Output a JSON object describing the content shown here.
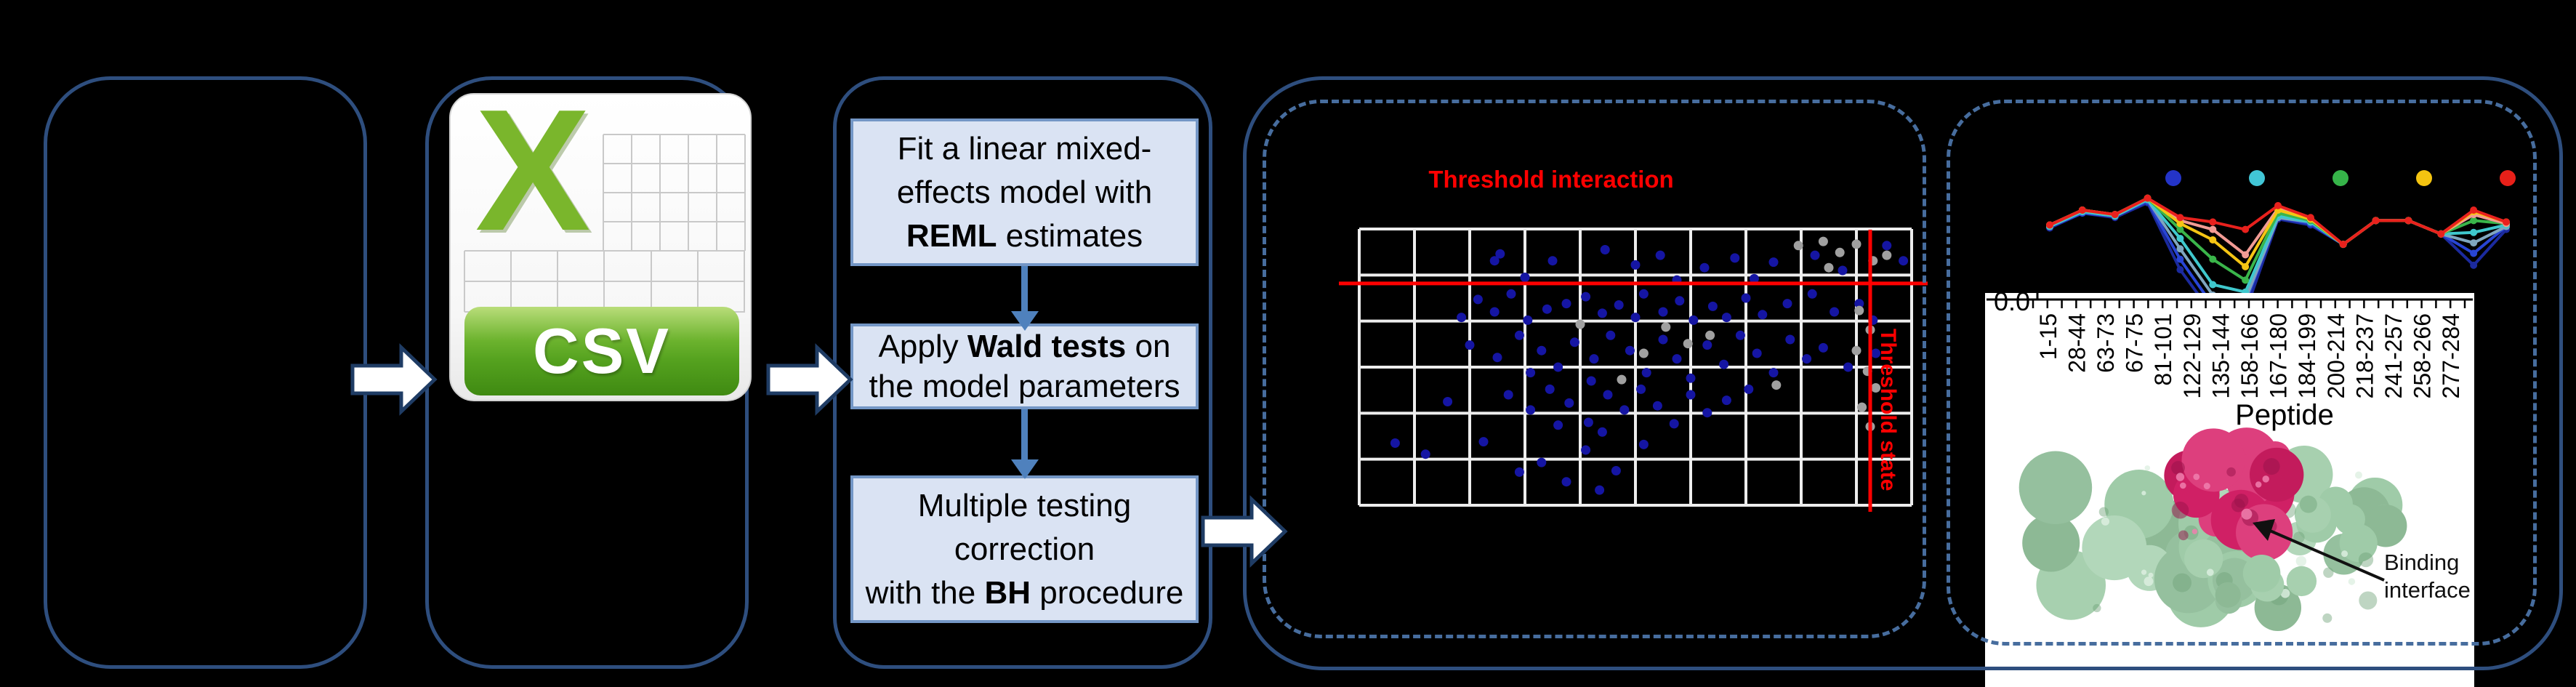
{
  "colors": {
    "background": "#000000",
    "panel_border": "#2e4e7e",
    "dashed_border": "#476d9e",
    "box_fill": "#dae3f3",
    "box_border": "#7396c5",
    "flow_arrow_fill": "#ffffff",
    "flow_arrow_outline": "#1f3c64",
    "down_arrow": "#4f81bd",
    "threshold_red": "#ff0000",
    "grid_line": "#ededed",
    "scatter_blue": "#1515a3",
    "scatter_gray": "#a0a0a0",
    "csv_green": "#7ab62c",
    "protein_green": "#9fcba8",
    "protein_green_dark": "#6fa178",
    "protein_green_light": "#dff0e2",
    "protein_pink": "#d02065",
    "protein_pink_dark": "#97124a",
    "protein_pink_light": "#f07fae"
  },
  "panel2": {
    "file_icon_letter": "X",
    "file_type_label": "CSV"
  },
  "panel3": {
    "boxes": [
      {
        "segments": [
          {
            "t": "Fit a linear mixed-"
          },
          {
            "br": true
          },
          {
            "t": "effects model with"
          },
          {
            "br": true
          },
          {
            "t": "REML",
            "b": true
          },
          {
            "t": " estimates"
          }
        ]
      },
      {
        "segments": [
          {
            "t": "Apply "
          },
          {
            "t": "Wald tests",
            "b": true
          },
          {
            "t": " on"
          },
          {
            "br": true
          },
          {
            "t": "the model parameters"
          }
        ]
      },
      {
        "segments": [
          {
            "t": "Multiple testing"
          },
          {
            "br": true
          },
          {
            "t": "correction"
          },
          {
            "br": true
          },
          {
            "t": "with the "
          },
          {
            "t": "BH",
            "b": true
          },
          {
            "t": " procedure"
          }
        ]
      }
    ]
  },
  "panel4": {
    "title": "Threshold interaction",
    "vline_label": "Threshold state",
    "chart_data": {
      "type": "scatter",
      "xlabel": "",
      "ylabel": "",
      "x_range": [
        0,
        1
      ],
      "y_range": [
        0,
        1
      ],
      "grid": {
        "cols": 10,
        "rows": 6,
        "visible": true
      },
      "threshold_interaction_y": 0.197,
      "threshold_state_x": 0.925,
      "series": [
        {
          "name": "blue-points",
          "color": "#1515a3",
          "points": [
            [
              0.255,
              0.09
            ],
            [
              0.35,
              0.115
            ],
            [
              0.445,
              0.075
            ],
            [
              0.5,
              0.13
            ],
            [
              0.545,
              0.095
            ],
            [
              0.625,
              0.14
            ],
            [
              0.68,
              0.105
            ],
            [
              0.75,
              0.12
            ],
            [
              0.825,
              0.095
            ],
            [
              0.875,
              0.15
            ],
            [
              0.955,
              0.06
            ],
            [
              0.985,
              0.115
            ],
            [
              0.3,
              0.175
            ],
            [
              0.575,
              0.185
            ],
            [
              0.715,
              0.18
            ],
            [
              0.245,
              0.115
            ],
            [
              0.215,
              0.255
            ],
            [
              0.245,
              0.3
            ],
            [
              0.275,
              0.235
            ],
            [
              0.305,
              0.33
            ],
            [
              0.375,
              0.27
            ],
            [
              0.41,
              0.245
            ],
            [
              0.44,
              0.305
            ],
            [
              0.47,
              0.275
            ],
            [
              0.515,
              0.235
            ],
            [
              0.55,
              0.3
            ],
            [
              0.58,
              0.26
            ],
            [
              0.605,
              0.33
            ],
            [
              0.64,
              0.28
            ],
            [
              0.7,
              0.25
            ],
            [
              0.73,
              0.31
            ],
            [
              0.775,
              0.27
            ],
            [
              0.82,
              0.235
            ],
            [
              0.86,
              0.3
            ],
            [
              0.905,
              0.27
            ],
            [
              0.93,
              0.33
            ],
            [
              0.185,
              0.32
            ],
            [
              0.34,
              0.29
            ],
            [
              0.5,
              0.32
            ],
            [
              0.665,
              0.32
            ],
            [
              0.2,
              0.42
            ],
            [
              0.25,
              0.465
            ],
            [
              0.29,
              0.385
            ],
            [
              0.33,
              0.44
            ],
            [
              0.36,
              0.5
            ],
            [
              0.39,
              0.41
            ],
            [
              0.425,
              0.47
            ],
            [
              0.455,
              0.385
            ],
            [
              0.49,
              0.44
            ],
            [
              0.52,
              0.52
            ],
            [
              0.55,
              0.4
            ],
            [
              0.575,
              0.47
            ],
            [
              0.6,
              0.54
            ],
            [
              0.63,
              0.42
            ],
            [
              0.66,
              0.49
            ],
            [
              0.69,
              0.385
            ],
            [
              0.72,
              0.45
            ],
            [
              0.75,
              0.52
            ],
            [
              0.78,
              0.4
            ],
            [
              0.81,
              0.47
            ],
            [
              0.84,
              0.43
            ],
            [
              0.885,
              0.5
            ],
            [
              0.935,
              0.45
            ],
            [
              0.31,
              0.52
            ],
            [
              0.42,
              0.55
            ],
            [
              0.27,
              0.6
            ],
            [
              0.31,
              0.655
            ],
            [
              0.345,
              0.58
            ],
            [
              0.38,
              0.63
            ],
            [
              0.415,
              0.7
            ],
            [
              0.45,
              0.6
            ],
            [
              0.48,
              0.655
            ],
            [
              0.51,
              0.58
            ],
            [
              0.54,
              0.64
            ],
            [
              0.57,
              0.705
            ],
            [
              0.6,
              0.6
            ],
            [
              0.63,
              0.665
            ],
            [
              0.665,
              0.62
            ],
            [
              0.705,
              0.58
            ],
            [
              0.16,
              0.625
            ],
            [
              0.44,
              0.735
            ],
            [
              0.36,
              0.71
            ],
            [
              0.065,
              0.775
            ],
            [
              0.12,
              0.815
            ],
            [
              0.225,
              0.77
            ],
            [
              0.33,
              0.845
            ],
            [
              0.375,
              0.915
            ],
            [
              0.41,
              0.8
            ],
            [
              0.465,
              0.875
            ],
            [
              0.515,
              0.78
            ],
            [
              0.435,
              0.945
            ],
            [
              0.29,
              0.88
            ]
          ]
        },
        {
          "name": "gray-points",
          "color": "#a0a0a0",
          "points": [
            [
              0.795,
              0.06
            ],
            [
              0.84,
              0.045
            ],
            [
              0.87,
              0.085
            ],
            [
              0.9,
              0.055
            ],
            [
              0.93,
              0.115
            ],
            [
              0.955,
              0.095
            ],
            [
              0.85,
              0.14
            ],
            [
              0.905,
              0.295
            ],
            [
              0.925,
              0.365
            ],
            [
              0.9,
              0.44
            ],
            [
              0.92,
              0.515
            ],
            [
              0.935,
              0.575
            ],
            [
              0.91,
              0.645
            ],
            [
              0.925,
              0.715
            ],
            [
              0.555,
              0.355
            ],
            [
              0.595,
              0.415
            ],
            [
              0.635,
              0.385
            ],
            [
              0.515,
              0.45
            ],
            [
              0.475,
              0.545
            ],
            [
              0.4,
              0.345
            ],
            [
              0.755,
              0.565
            ]
          ]
        }
      ]
    }
  },
  "panel5": {
    "y_axis_tick": "0.0",
    "x_axis_label": "Peptide",
    "annotation_line1": "Binding",
    "annotation_line2": "interface",
    "chart_data": {
      "type": "line",
      "title": "",
      "xlabel": "Peptide",
      "ylabel": "",
      "ylim": [
        0,
        1
      ],
      "grid": false,
      "legend_position": "top",
      "legend_dot_colors": [
        "#2434c8",
        "#41c6d6",
        "#36b449",
        "#f4c411",
        "#e82019"
      ],
      "categories": [
        "1-15",
        "28-44",
        "63-73",
        "67-75",
        "81-101",
        "122-129",
        "135-144",
        "158-166",
        "167-180",
        "184-199",
        "200-214",
        "218-237",
        "241-257",
        "258-266",
        "277-284"
      ],
      "series": [
        {
          "name": "navy",
          "color": "#1b2a9e",
          "values": [
            0.48,
            0.58,
            0.55,
            0.65,
            0.2,
            -0.1,
            -0.08,
            0.54,
            0.5,
            0.37,
            0.53,
            0.53,
            0.44,
            0.23,
            0.47
          ]
        },
        {
          "name": "blue",
          "color": "#2845d4",
          "values": [
            0.49,
            0.58,
            0.56,
            0.66,
            0.27,
            -0.04,
            -0.02,
            0.55,
            0.51,
            0.37,
            0.53,
            0.53,
            0.44,
            0.31,
            0.49
          ]
        },
        {
          "name": "steel",
          "color": "#7fa6bf",
          "values": [
            0.49,
            0.59,
            0.56,
            0.67,
            0.34,
            0.03,
            0.0,
            0.55,
            0.52,
            0.37,
            0.53,
            0.53,
            0.44,
            0.38,
            0.49
          ]
        },
        {
          "name": "cyan",
          "color": "#3fc8cd",
          "values": [
            0.49,
            0.59,
            0.56,
            0.67,
            0.41,
            0.1,
            0.05,
            0.56,
            0.52,
            0.37,
            0.53,
            0.53,
            0.44,
            0.45,
            0.5
          ]
        },
        {
          "name": "green",
          "color": "#3ab54a",
          "values": [
            0.5,
            0.6,
            0.57,
            0.68,
            0.47,
            0.27,
            0.13,
            0.58,
            0.53,
            0.37,
            0.53,
            0.53,
            0.44,
            0.53,
            0.51
          ]
        },
        {
          "name": "salmon",
          "color": "#f29b94",
          "values": [
            0.5,
            0.6,
            0.57,
            0.68,
            0.53,
            0.47,
            0.3,
            0.61,
            0.54,
            0.37,
            0.53,
            0.53,
            0.44,
            0.57,
            0.51
          ]
        },
        {
          "name": "yellow",
          "color": "#f5c514",
          "values": [
            0.5,
            0.6,
            0.57,
            0.68,
            0.51,
            0.4,
            0.22,
            0.6,
            0.54,
            0.37,
            0.53,
            0.53,
            0.44,
            0.59,
            0.52
          ]
        },
        {
          "name": "red",
          "color": "#e8211d",
          "values": [
            0.5,
            0.6,
            0.57,
            0.68,
            0.55,
            0.52,
            0.47,
            0.63,
            0.55,
            0.37,
            0.53,
            0.53,
            0.44,
            0.6,
            0.52
          ]
        }
      ]
    }
  }
}
